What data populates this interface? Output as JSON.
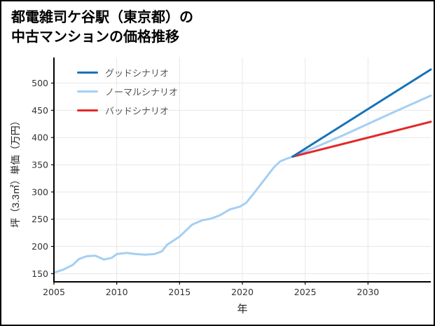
{
  "header": {
    "title_line1": "都電雑司ケ谷駅（東京都）の",
    "title_line2": "中古マンションの価格推移"
  },
  "chart_data": {
    "type": "line",
    "title": "都電雑司ケ谷駅（東京都）の中古マンションの価格推移",
    "xlabel": "年",
    "ylabel": "坪（3.3㎡）単価（万円）",
    "xlim": [
      2005,
      2035
    ],
    "ylim": [
      135,
      547
    ],
    "x_ticks": [
      2005,
      2010,
      2015,
      2020,
      2025,
      2030
    ],
    "y_ticks": [
      150,
      200,
      250,
      300,
      350,
      400,
      450,
      500
    ],
    "grid": true,
    "grid_color": "#e7e7e7",
    "axis_color": "#000000",
    "tick_label_color": "#333333",
    "legend_position": "top-left",
    "legend": [
      {
        "id": "good-scenario",
        "label": "グッドシナリオ",
        "color": "#1673b9"
      },
      {
        "id": "normal-scenario",
        "label": "ノーマルシナリオ",
        "color": "#a5cff2"
      },
      {
        "id": "bad-scenario",
        "label": "バッドシナリオ",
        "color": "#e3282a"
      }
    ],
    "series": [
      {
        "id": "normal-scenario-line",
        "name": "ノーマルシナリオ",
        "color": "#a5cff2",
        "width": 3,
        "x": [
          2005,
          2005.7,
          2006.5,
          2007,
          2007.6,
          2008.3,
          2009,
          2009.6,
          2010,
          2010.8,
          2011.5,
          2012.3,
          2013,
          2013.6,
          2014,
          2015,
          2016,
          2016.8,
          2017.5,
          2018.2,
          2019,
          2019.8,
          2020.3,
          2021,
          2021.8,
          2022.5,
          2023,
          2023.5,
          2024,
          2026,
          2028,
          2030,
          2032,
          2035
        ],
        "y": [
          152,
          157,
          166,
          177,
          182,
          183,
          176,
          179,
          186,
          188,
          186,
          185,
          186,
          191,
          203,
          218,
          240,
          248,
          251,
          257,
          268,
          273,
          280,
          300,
          324,
          345,
          356,
          361,
          365,
          384,
          404,
          425,
          446,
          477
        ]
      },
      {
        "id": "bad-scenario-line",
        "name": "バッドシナリオ",
        "color": "#e3282a",
        "width": 3,
        "x": [
          2024,
          2035
        ],
        "y": [
          365,
          429
        ]
      },
      {
        "id": "good-scenario-line",
        "name": "グッドシナリオ",
        "color": "#1673b9",
        "width": 3,
        "x": [
          2024,
          2035
        ],
        "y": [
          365,
          525
        ]
      }
    ]
  }
}
